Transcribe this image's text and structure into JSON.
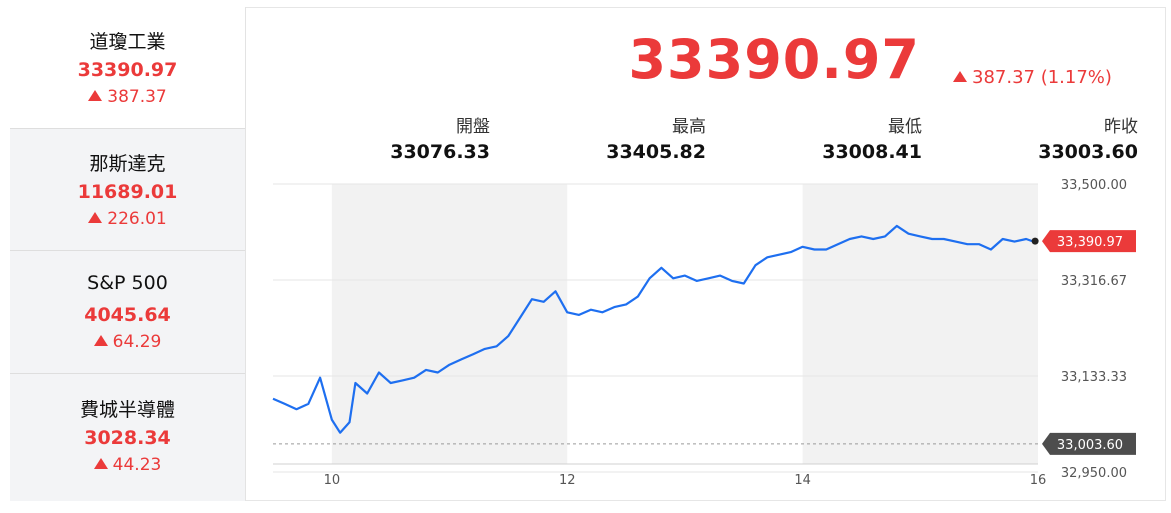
{
  "sidebar": {
    "items": [
      {
        "name": "道瓊工業",
        "value": "33390.97",
        "change": "387.37"
      },
      {
        "name": "那斯達克",
        "value": "11689.01",
        "change": "226.01"
      },
      {
        "name": "S&P 500",
        "value": "4045.64",
        "change": "64.29"
      },
      {
        "name": "費城半導體",
        "value": "3028.34",
        "change": "44.23"
      }
    ]
  },
  "quote": {
    "price": "33390.97",
    "change": "387.37 (1.17%)",
    "stats": [
      {
        "label": "開盤",
        "value": "33076.33"
      },
      {
        "label": "最高",
        "value": "33405.82"
      },
      {
        "label": "最低",
        "value": "33008.41"
      },
      {
        "label": "昨收",
        "value": "33003.60"
      }
    ]
  },
  "colors": {
    "up": "#eb3a3a",
    "line": "#1e6ff0",
    "prev_close_tag": "#4d4d4d"
  },
  "chart_data": {
    "type": "line",
    "x_ticks": [
      "10",
      "12",
      "14",
      "16"
    ],
    "y_ticks": [
      "33,500.00",
      "33,316.67",
      "33,133.33",
      "32,950.00"
    ],
    "ylim": [
      32950,
      33500
    ],
    "last_label": "33,390.97",
    "last_value": 33390.97,
    "prev_close_label": "33,003.60",
    "prev_close_value": 33003.6,
    "series": [
      {
        "x": [
          9.5,
          9.6,
          9.7,
          9.8,
          9.9,
          10.0,
          10.07,
          10.15,
          10.2,
          10.3,
          10.4,
          10.5,
          10.6,
          10.7,
          10.8,
          10.9,
          11.0,
          11.1,
          11.2,
          11.3,
          11.4,
          11.5,
          11.6,
          11.7,
          11.8,
          11.9,
          12.0,
          12.1,
          12.2,
          12.3,
          12.4,
          12.5,
          12.6,
          12.7,
          12.8,
          12.9,
          13.0,
          13.1,
          13.2,
          13.3,
          13.4,
          13.5,
          13.6,
          13.7,
          13.8,
          13.9,
          14.0,
          14.1,
          14.2,
          14.3,
          14.4,
          14.5,
          14.6,
          14.7,
          14.8,
          14.9,
          15.0,
          15.1,
          15.2,
          15.3,
          15.4,
          15.5,
          15.6,
          15.7,
          15.8,
          15.9,
          15.95
        ],
        "y": [
          33090,
          33080,
          33070,
          33080,
          33130,
          33050,
          33025,
          33045,
          33120,
          33100,
          33140,
          33120,
          33125,
          33130,
          33145,
          33140,
          33155,
          33165,
          33175,
          33185,
          33190,
          33210,
          33245,
          33280,
          33275,
          33295,
          33255,
          33250,
          33260,
          33255,
          33265,
          33270,
          33285,
          33320,
          33340,
          33320,
          33325,
          33315,
          33320,
          33325,
          33315,
          33310,
          33345,
          33360,
          33365,
          33370,
          33380,
          33375,
          33375,
          33385,
          33395,
          33400,
          33395,
          33400,
          33420,
          33405,
          33400,
          33395,
          33395,
          33390,
          33385,
          33385,
          33375,
          33395,
          33390,
          33395,
          33390.97
        ]
      }
    ]
  }
}
